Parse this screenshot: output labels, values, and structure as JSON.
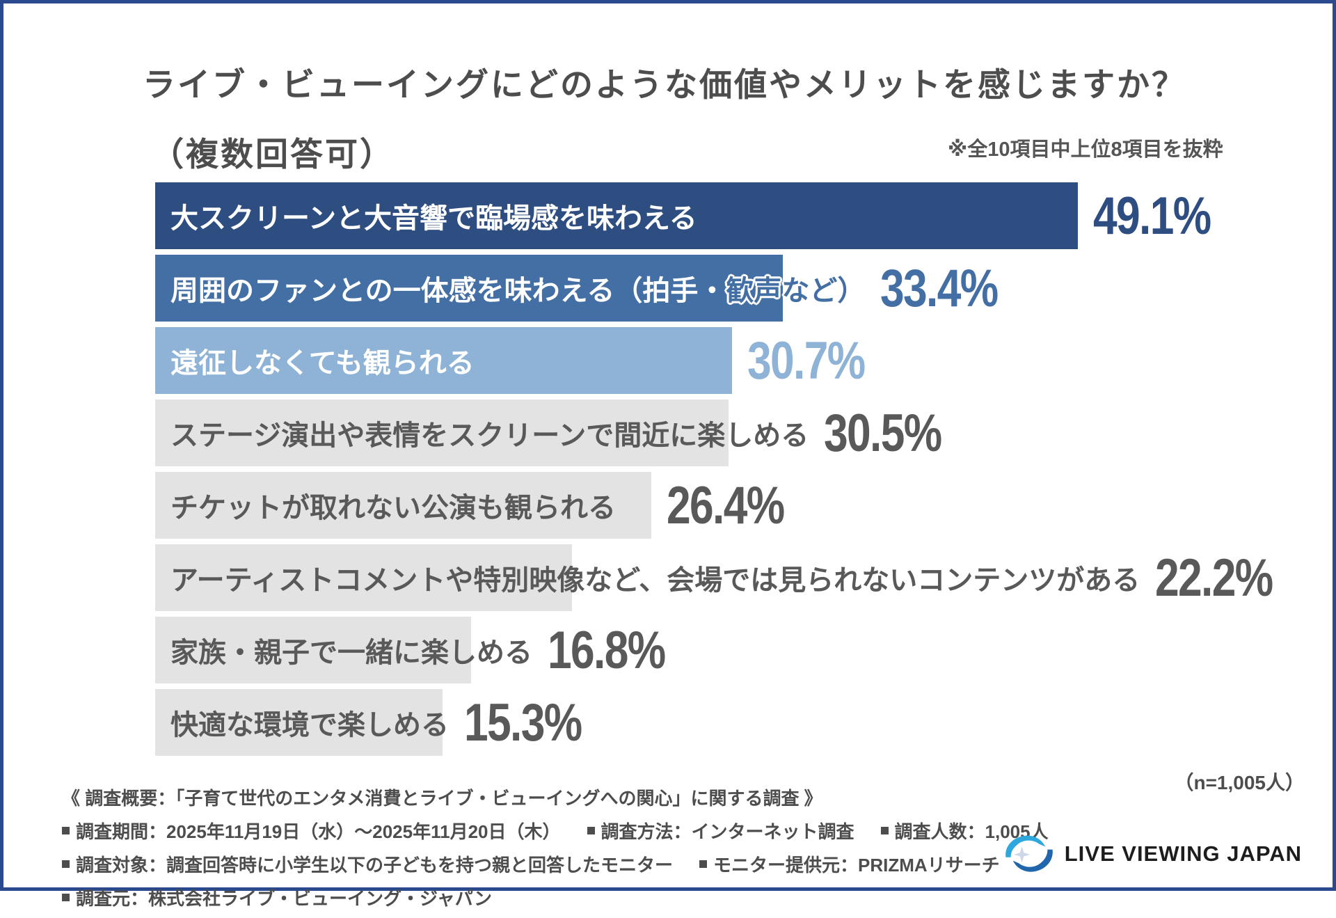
{
  "page": {
    "border_color": "#2b4a8e",
    "background_color": "#ffffff"
  },
  "header": {
    "title_line1": "ライブ・ビューイングにどのような価値やメリットを感じますか？",
    "title_line2": "（複数回答可）",
    "excerpt_note": "※全10項目中上位8項目を抜粋"
  },
  "chart_data": {
    "type": "bar",
    "orientation": "horizontal",
    "unit": "%",
    "title": "ライブ・ビューイングにどのような価値やメリットを感じますか？（複数回答可）",
    "note": "※全10項目中上位8項目を抜粋",
    "sample_size_note": "（n=1,005人）",
    "xlim": [
      0,
      50
    ],
    "grid": false,
    "legend": false,
    "categories": [
      "大スクリーンと大音響で臨場感を味わえる",
      "周囲のファンとの一体感を味わえる（拍手・歓声など）",
      "遠征しなくても観られる",
      "ステージ演出や表情をスクリーンで間近に楽しめる",
      "チケットが取れない公演も観られる",
      "アーティストコメントや特別映像など、会場では見られないコンテンツがある",
      "家族・親子で一緒に楽しめる",
      "快適な環境で楽しめる"
    ],
    "values": [
      49.1,
      33.4,
      30.7,
      30.5,
      26.4,
      22.2,
      16.8,
      15.3
    ],
    "items": [
      {
        "label": "大スクリーンと大音響で臨場感を味わえる",
        "label_main": "大スクリーンと大音響で臨場感を味わえる",
        "label_overflow": "",
        "value": 49.1,
        "value_label": "49.1%",
        "bar_color": "#2e4d80",
        "text_color": "#ffffff",
        "value_color": "#2e4d80"
      },
      {
        "label": "周囲のファンとの一体感を味わえる（拍手・歓声など）",
        "label_main": "周囲のファンとの一体感を味わえる（拍手・",
        "label_overflow": "歓声など）",
        "value": 33.4,
        "value_label": "33.4%",
        "bar_color": "#436fa4",
        "text_color": "#ffffff",
        "value_color": "#436fa4"
      },
      {
        "label": "遠征しなくても観られる",
        "label_main": "遠征しなくても観られる",
        "label_overflow": "",
        "value": 30.7,
        "value_label": "30.7%",
        "bar_color": "#8fb3d6",
        "text_color": "#ffffff",
        "value_color": "#8fb3d6"
      },
      {
        "label": "ステージ演出や表情をスクリーンで間近に楽しめる",
        "label_main": "ステージ演出や表情をスクリーンで間近に楽しめる",
        "label_overflow": "",
        "value": 30.5,
        "value_label": "30.5%",
        "bar_color": "#e3e3e3",
        "text_color": "#595959",
        "value_color": "#595959"
      },
      {
        "label": "チケットが取れない公演も観られる",
        "label_main": "チケットが取れない公演も観られる",
        "label_overflow": "",
        "value": 26.4,
        "value_label": "26.4%",
        "bar_color": "#e3e3e3",
        "text_color": "#595959",
        "value_color": "#595959"
      },
      {
        "label": "アーティストコメントや特別映像など、会場では見られないコンテンツがある",
        "label_main": "アーティストコメントや特別映像など、会場では見られないコンテンツがある",
        "label_overflow": "",
        "value": 22.2,
        "value_label": "22.2%",
        "bar_color": "#e3e3e3",
        "text_color": "#595959",
        "value_color": "#595959"
      },
      {
        "label": "家族・親子で一緒に楽しめる",
        "label_main": "家族・親子で一緒に楽しめる",
        "label_overflow": "",
        "value": 16.8,
        "value_label": "16.8%",
        "bar_color": "#e3e3e3",
        "text_color": "#595959",
        "value_color": "#595959"
      },
      {
        "label": "快適な環境で楽しめる",
        "label_main": "快適な環境で楽しめる",
        "label_overflow": "",
        "value": 15.3,
        "value_label": "15.3%",
        "bar_color": "#e3e3e3",
        "text_color": "#595959",
        "value_color": "#595959"
      }
    ]
  },
  "sample_note": "（n=1,005人）",
  "footer": {
    "summary": "《 調査概要：「子育て世代のエンタメ消費とライブ・ビューイングへの関心」に関する調査 》",
    "rows": [
      {
        "items": [
          {
            "text": "調査期間：2025年11月19日（水）〜2025年11月20日（木）"
          },
          {
            "text": "調査方法：インターネット調査"
          },
          {
            "text": "調査人数：1,005人"
          }
        ]
      },
      {
        "items": [
          {
            "text": "調査対象：調査回答時に小学生以下の子どもを持つ親と回答したモニター"
          },
          {
            "text": "モニター提供元：PRIZMAリサーチ"
          }
        ]
      },
      {
        "items": [
          {
            "text": "調査元：株式会社ライブ・ビューイング・ジャパン"
          }
        ]
      }
    ]
  },
  "logo": {
    "text": "LIVE VIEWING JAPAN",
    "icon": "swirl-sparkle",
    "colors": {
      "light_blue": "#2ea7dc",
      "dark_blue": "#1f66ad",
      "star": "#cdd7e8",
      "text": "#1d1d1d"
    }
  }
}
